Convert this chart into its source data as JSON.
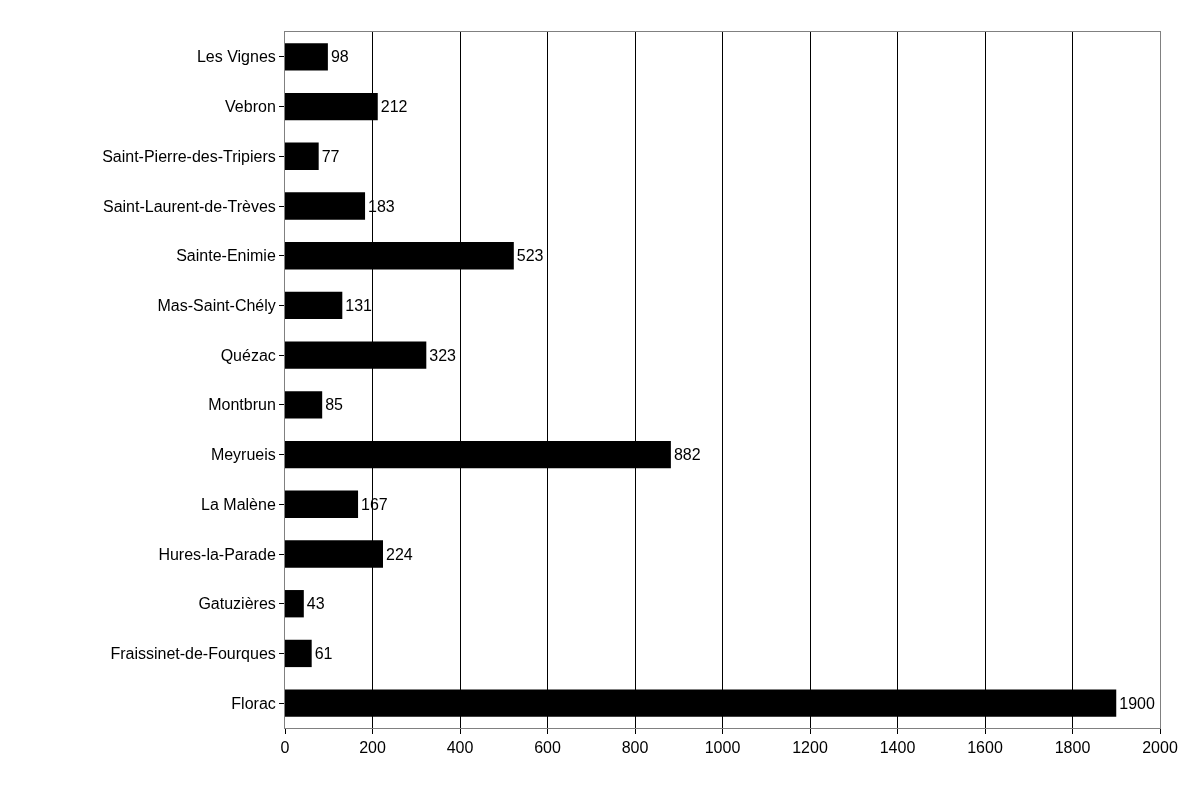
{
  "chart_data": {
    "type": "bar",
    "orientation": "horizontal",
    "categories": [
      "Les Vignes",
      "Vebron",
      "Saint-Pierre-des-Tripiers",
      "Saint-Laurent-de-Trèves",
      "Sainte-Enimie",
      "Mas-Saint-Chély",
      "Quézac",
      "Montbrun",
      "Meyrueis",
      "La Malène",
      "Hures-la-Parade",
      "Gatuzières",
      "Fraissinet-de-Fourques",
      "Florac"
    ],
    "values": [
      98,
      212,
      77,
      183,
      523,
      131,
      323,
      85,
      882,
      167,
      224,
      43,
      61,
      1900
    ],
    "color": "#000000",
    "xlim": [
      0,
      2000
    ],
    "xticks": [
      0,
      200,
      400,
      600,
      800,
      1000,
      1200,
      1400,
      1600,
      1800,
      2000
    ],
    "grid": "x",
    "data_labels": true
  }
}
